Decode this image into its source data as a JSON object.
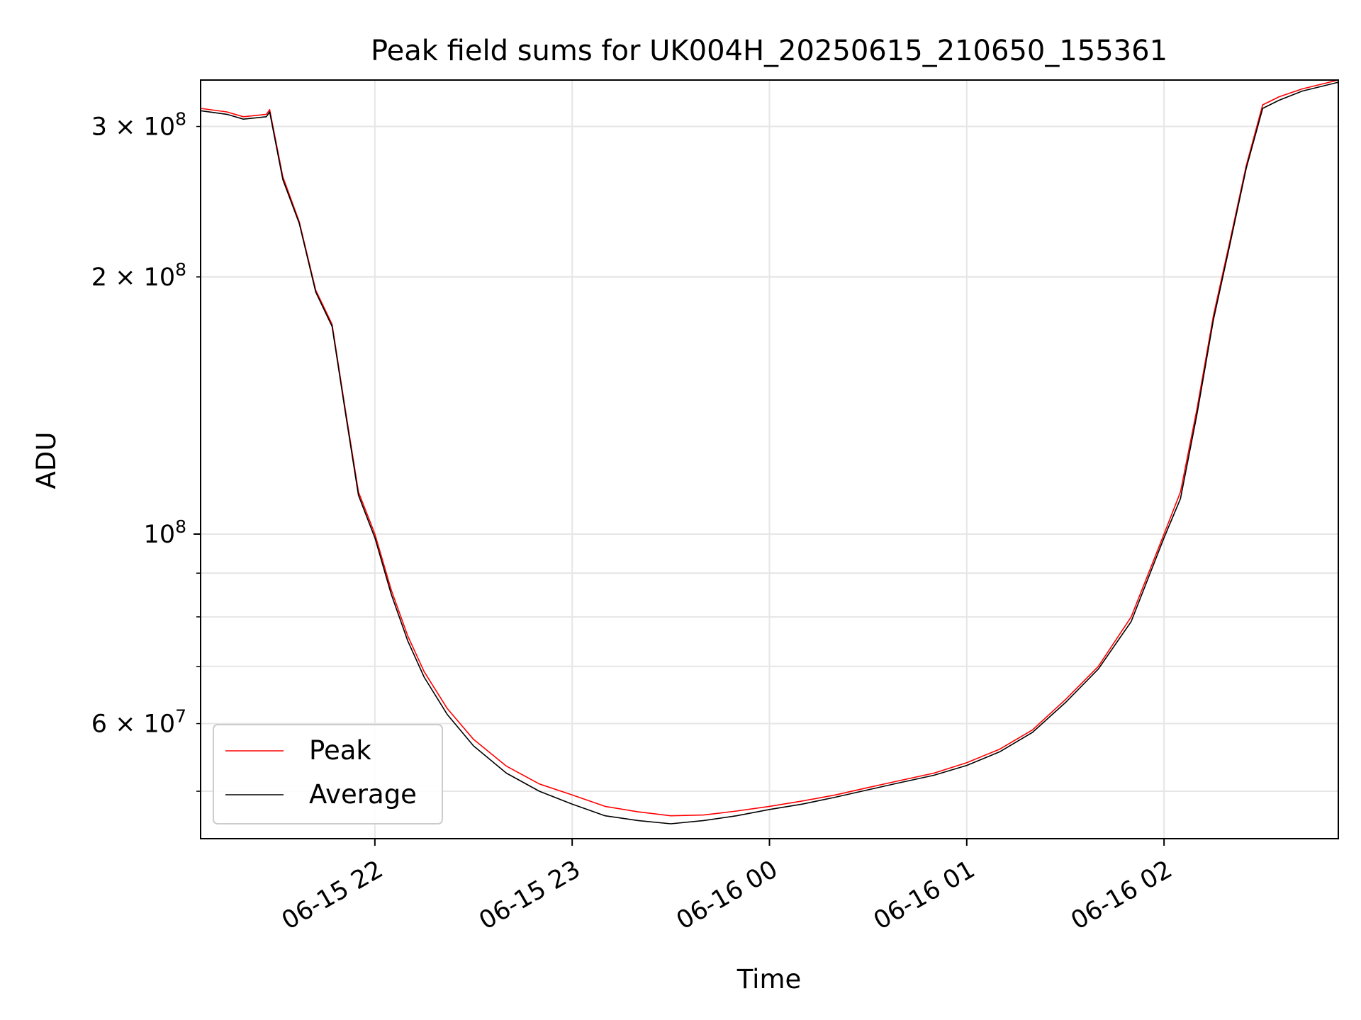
{
  "chart_data": {
    "type": "line",
    "title": "Peak field sums for UK004H_20250615_210650_155361",
    "xlabel": "Time",
    "ylabel": "ADU",
    "y_scale": "log",
    "ylim": [
      44000000,
      340000000
    ],
    "xlim": [
      "2025-06-15 21:07",
      "2025-06-16 02:53"
    ],
    "x_ticks": [
      {
        "value": "2025-06-15 22:00",
        "label": "06-15 22"
      },
      {
        "value": "2025-06-15 23:00",
        "label": "06-15 23"
      },
      {
        "value": "2025-06-16 00:00",
        "label": "06-16 00"
      },
      {
        "value": "2025-06-16 01:00",
        "label": "06-16 01"
      },
      {
        "value": "2025-06-16 02:00",
        "label": "06-16 02"
      }
    ],
    "y_ticks_major": [
      {
        "value": 100000000,
        "base": "10",
        "exp": "8"
      }
    ],
    "y_ticks_labeled_minor": [
      {
        "value": 300000000,
        "mant": "3",
        "base": "10",
        "exp": "8"
      },
      {
        "value": 200000000,
        "mant": "2",
        "base": "10",
        "exp": "8"
      },
      {
        "value": 60000000,
        "mant": "6",
        "base": "10",
        "exp": "7"
      }
    ],
    "y_ticks_minor": [
      50000000,
      70000000,
      80000000,
      90000000
    ],
    "grid": true,
    "legend": {
      "position": "lower left"
    },
    "series": [
      {
        "name": "Peak",
        "color": "#ff0000",
        "x": [
          "2025-06-15 21:07",
          "2025-06-15 21:15",
          "2025-06-15 21:20",
          "2025-06-15 21:27",
          "2025-06-15 21:28",
          "2025-06-15 21:32",
          "2025-06-15 21:37",
          "2025-06-15 21:42",
          "2025-06-15 21:47",
          "2025-06-15 21:51",
          "2025-06-15 21:55",
          "2025-06-15 22:00",
          "2025-06-15 22:05",
          "2025-06-15 22:10",
          "2025-06-15 22:15",
          "2025-06-15 22:22",
          "2025-06-15 22:30",
          "2025-06-15 22:40",
          "2025-06-15 22:50",
          "2025-06-15 23:00",
          "2025-06-15 23:10",
          "2025-06-15 23:20",
          "2025-06-15 23:30",
          "2025-06-15 23:40",
          "2025-06-15 23:50",
          "2025-06-16 00:00",
          "2025-06-16 00:10",
          "2025-06-16 00:20",
          "2025-06-16 00:30",
          "2025-06-16 00:40",
          "2025-06-16 00:50",
          "2025-06-16 01:00",
          "2025-06-16 01:10",
          "2025-06-16 01:20",
          "2025-06-16 01:30",
          "2025-06-16 01:40",
          "2025-06-16 01:50",
          "2025-06-16 02:00",
          "2025-06-16 02:05",
          "2025-06-16 02:10",
          "2025-06-16 02:15",
          "2025-06-16 02:20",
          "2025-06-16 02:25",
          "2025-06-16 02:30",
          "2025-06-16 02:35",
          "2025-06-16 02:42",
          "2025-06-16 02:53"
        ],
        "values": [
          315000000,
          312000000,
          308000000,
          310000000,
          314000000,
          262000000,
          232000000,
          193000000,
          176000000,
          140000000,
          112000000,
          100000000,
          86000000,
          76000000,
          69000000,
          62500000,
          57500000,
          53500000,
          51000000,
          49500000,
          48000000,
          47300000,
          46800000,
          46900000,
          47400000,
          48000000,
          48700000,
          49500000,
          50500000,
          51500000,
          52500000,
          54000000,
          56000000,
          59000000,
          64000000,
          70000000,
          80000000,
          100000000,
          112000000,
          140000000,
          180000000,
          220000000,
          270000000,
          318000000,
          325000000,
          332000000,
          340000000
        ]
      },
      {
        "name": "Average",
        "color": "#000000",
        "x": [
          "2025-06-15 21:07",
          "2025-06-15 21:15",
          "2025-06-15 21:20",
          "2025-06-15 21:27",
          "2025-06-15 21:28",
          "2025-06-15 21:32",
          "2025-06-15 21:37",
          "2025-06-15 21:42",
          "2025-06-15 21:47",
          "2025-06-15 21:51",
          "2025-06-15 21:55",
          "2025-06-15 22:00",
          "2025-06-15 22:05",
          "2025-06-15 22:10",
          "2025-06-15 22:15",
          "2025-06-15 22:22",
          "2025-06-15 22:30",
          "2025-06-15 22:40",
          "2025-06-15 22:50",
          "2025-06-15 23:00",
          "2025-06-15 23:10",
          "2025-06-15 23:20",
          "2025-06-15 23:30",
          "2025-06-15 23:40",
          "2025-06-15 23:50",
          "2025-06-16 00:00",
          "2025-06-16 00:10",
          "2025-06-16 00:20",
          "2025-06-16 00:30",
          "2025-06-16 00:40",
          "2025-06-16 00:50",
          "2025-06-16 01:00",
          "2025-06-16 01:10",
          "2025-06-16 01:20",
          "2025-06-16 01:30",
          "2025-06-16 01:40",
          "2025-06-16 01:50",
          "2025-06-16 02:00",
          "2025-06-16 02:05",
          "2025-06-16 02:10",
          "2025-06-16 02:15",
          "2025-06-16 02:20",
          "2025-06-16 02:25",
          "2025-06-16 02:30",
          "2025-06-16 02:35",
          "2025-06-16 02:42",
          "2025-06-16 02:53"
        ],
        "values": [
          313000000,
          310000000,
          306000000,
          308000000,
          312000000,
          260000000,
          231000000,
          192000000,
          175000000,
          139000000,
          111000000,
          99000000,
          85000000,
          75000000,
          68000000,
          61500000,
          56500000,
          52500000,
          50000000,
          48300000,
          46800000,
          46200000,
          45800000,
          46200000,
          46800000,
          47600000,
          48300000,
          49200000,
          50200000,
          51200000,
          52200000,
          53600000,
          55600000,
          58600000,
          63500000,
          69500000,
          79000000,
          99000000,
          110000000,
          138000000,
          178000000,
          218000000,
          268000000,
          315000000,
          322000000,
          330000000,
          338000000
        ]
      }
    ]
  }
}
